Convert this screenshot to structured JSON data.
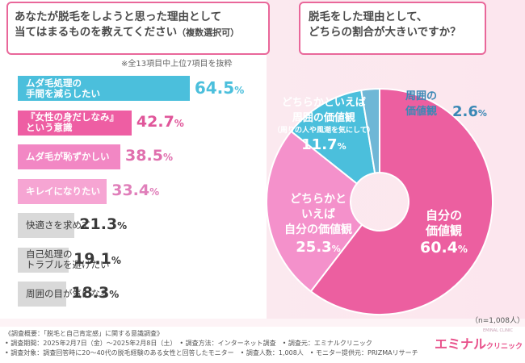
{
  "left": {
    "question_line1": "あなたが脱毛をしようと思った理由として",
    "question_line2": "当てはまるものを教えてください",
    "question_suffix": "（複数選択可）",
    "note": "※全13項目中上位7項目を抜粋"
  },
  "right": {
    "question_line1": "脱毛をした理由として、",
    "question_line2": "どちらの割合が大きいですか？",
    "n_label": "（n=1,008人）"
  },
  "colors": {
    "accent": "#e9679a",
    "blue": "#4bbfdc",
    "gray": "#d9d9d9"
  },
  "chart_data": [
    {
      "type": "bar",
      "orientation": "horizontal",
      "title": "あなたが脱毛をしようと思った理由として当てはまるものを教えてください（複数選択可）",
      "unit": "%",
      "categories": [
        "ムダ毛処理の\n手間を減らしたい",
        "『女性の身だしなみ』\nという意識",
        "ムダ毛が恥ずかしい",
        "キレイになりたい",
        "快適さを求めて",
        "自己処理の\nトラブルを避けたい",
        "周囲の目が気になる"
      ],
      "values": [
        64.5,
        42.7,
        38.5,
        33.4,
        21.3,
        19.1,
        18.3
      ],
      "bar_colors": [
        "#4bbfdc",
        "#ee5ea3",
        "#f287c4",
        "#f6a5d3",
        "#d9d9d9",
        "#d9d9d9",
        "#d9d9d9"
      ],
      "label_colors": [
        "#4bbfdc",
        "#e0569a",
        "#e06fae",
        "#e07fba",
        "#3a3a3a",
        "#3a3a3a",
        "#3a3a3a"
      ],
      "xlim": [
        0,
        100
      ]
    },
    {
      "type": "pie",
      "style": "donut",
      "title": "脱毛をした理由として、どちらの割合が大きいですか？",
      "unit": "%",
      "slices": [
        {
          "label": "自分の\n価値観",
          "value": 60.4,
          "color": "#ec5fa0"
        },
        {
          "label": "どちらかと\nいえば\n自分の価値観",
          "value": 25.3,
          "color": "#f491cb"
        },
        {
          "label": "どちらかといえば\n周囲の価値観",
          "sub": "（周りの人や風潮を気にして）",
          "value": 11.7,
          "color": "#4bbfdc"
        },
        {
          "label": "周囲の\n価値観",
          "value": 2.6,
          "color": "#6fb7d6"
        }
      ]
    }
  ],
  "footer": {
    "line1": "《調査概要：「脱毛と自己肯定感」に関する意識調査》",
    "line2": "• 調査期間：2025年2月7日（金）～2025年2月8日（土）　• 調査方法：インターネット調査　• 調査元：エミナルクリニック",
    "line3": "• 調査対象：調査回答時に20～40代の脱毛経験のある女性と回答したモニター　• 調査人数：1,008人　• モニター提供元：PRIZMAリサーチ",
    "logo_main": "エミナル",
    "logo_sub": "クリニック",
    "logo_tag": "EMINAL CLINIC"
  }
}
